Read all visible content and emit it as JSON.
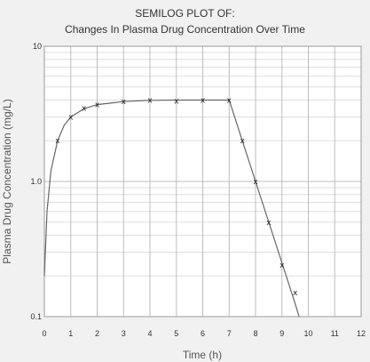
{
  "chart_data": {
    "type": "line",
    "title_line_1": "SEMILOG PLOT OF:",
    "title_line_2": "Changes In Plasma Drug Concentration Over Time",
    "xlabel": "Time  (h)",
    "ylabel": "Plasma Drug Concentration  (mg/L)",
    "x_ticks": [
      "0",
      "1",
      "2",
      "3",
      "4",
      "5",
      "6",
      "7",
      "8",
      "9",
      "10",
      "11",
      "12"
    ],
    "y_tick_labels": [
      "10",
      "1.0",
      "0.1"
    ],
    "xlim": [
      0,
      12
    ],
    "ylim": [
      0.1,
      10
    ],
    "y_scale": "log",
    "grid": true,
    "marker_symbol": "x",
    "colors": {
      "background": "#f1f1f1",
      "plot_bg": "#ffffff",
      "grid_major": "#bdbdbd",
      "grid_minor": "#dedede",
      "line": "#666666",
      "marker": "#222222"
    },
    "series": [
      {
        "points": [
          {
            "x": 0.5,
            "y": 2.0
          },
          {
            "x": 1.0,
            "y": 3.0
          },
          {
            "x": 1.5,
            "y": 3.5
          },
          {
            "x": 2.0,
            "y": 3.7
          },
          {
            "x": 3.0,
            "y": 3.9
          },
          {
            "x": 4.0,
            "y": 4.0
          },
          {
            "x": 5.0,
            "y": 3.95
          },
          {
            "x": 6.0,
            "y": 4.0
          },
          {
            "x": 7.0,
            "y": 4.0
          },
          {
            "x": 7.5,
            "y": 2.0
          },
          {
            "x": 8.0,
            "y": 1.0
          },
          {
            "x": 8.5,
            "y": 0.5
          },
          {
            "x": 9.0,
            "y": 0.24
          },
          {
            "x": 9.5,
            "y": 0.15
          }
        ],
        "fit_curve": [
          {
            "x": 0.0,
            "y": 0.2
          },
          {
            "x": 0.1,
            "y": 0.6
          },
          {
            "x": 0.25,
            "y": 1.2
          },
          {
            "x": 0.5,
            "y": 2.0
          },
          {
            "x": 0.75,
            "y": 2.6
          },
          {
            "x": 1.0,
            "y": 3.0
          },
          {
            "x": 1.5,
            "y": 3.45
          },
          {
            "x": 2.0,
            "y": 3.7
          },
          {
            "x": 3.0,
            "y": 3.9
          },
          {
            "x": 4.0,
            "y": 3.98
          },
          {
            "x": 5.0,
            "y": 4.0
          },
          {
            "x": 6.0,
            "y": 4.0
          },
          {
            "x": 7.0,
            "y": 4.0
          },
          {
            "x": 7.5,
            "y": 2.0
          },
          {
            "x": 8.0,
            "y": 1.0
          },
          {
            "x": 8.5,
            "y": 0.5
          },
          {
            "x": 9.0,
            "y": 0.25
          },
          {
            "x": 9.5,
            "y": 0.125
          },
          {
            "x": 9.65,
            "y": 0.1
          }
        ]
      }
    ]
  }
}
